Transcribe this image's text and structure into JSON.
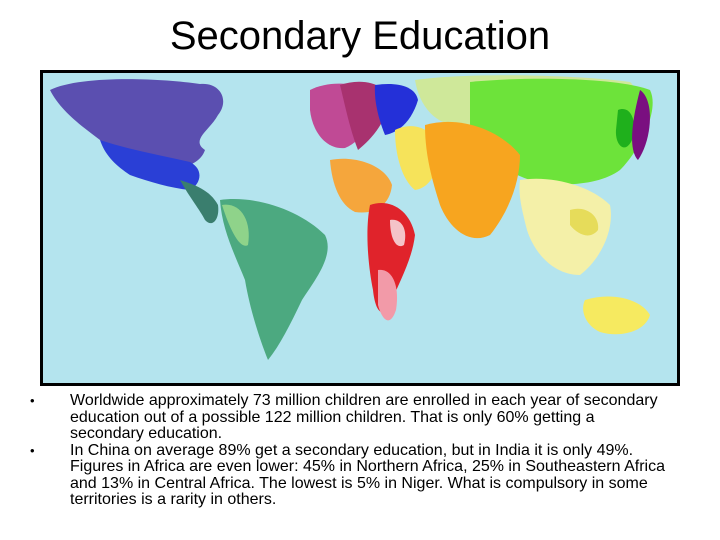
{
  "title": "Secondary Education",
  "bullets": [
    "Worldwide approximately 73 million children are enrolled in each year of secondary education out of a possible 122 million children. That is only 60% getting a secondary education.",
    "In China on average 89% get a secondary education, but in India it is only 49%. Figures in Africa are even lower: 45% in Northern Africa, 25% in Southeastern Africa and 13% in Central Africa. The lowest is 5% in Niger. What is compulsory in some territories is a rarity in others."
  ]
}
